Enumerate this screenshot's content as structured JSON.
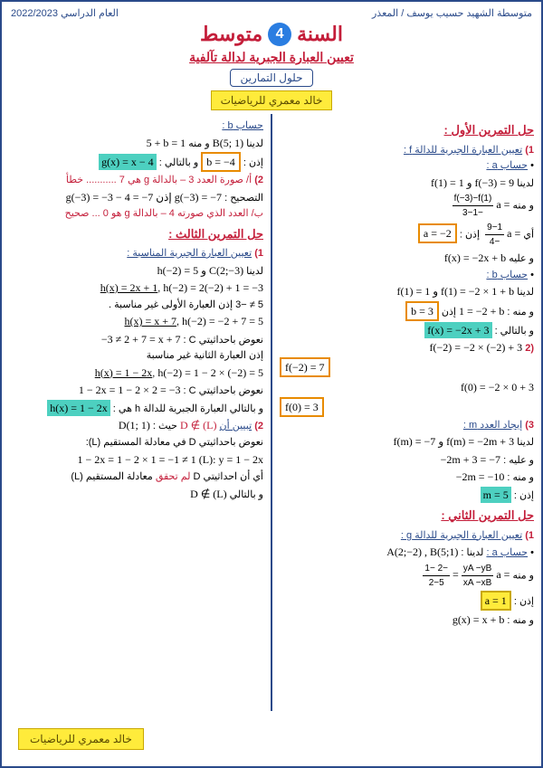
{
  "header": {
    "school": "متوسطة الشهيد حسيب يوسف / المعذر",
    "year": "العام الدراسي 2022/2023"
  },
  "title": {
    "word1": "السنة",
    "grade": "4",
    "word2": "متوسط",
    "subtitle": "تعيين العبارة الجبرية لدالة تآلفية",
    "solutions": "حلول التمارين",
    "author": "خالد معمري للرياضيات"
  },
  "ex1": {
    "title": "حل التمرين الأول :",
    "p1": "تعيين العبارة الجبرية للدالة f :",
    "a": "حساب a :",
    "l1a": "لدينا",
    "l1m": "f(1) = 1 و f(−3) = 9",
    "l2a": "و منه",
    "l2m": "a =",
    "l2fn": "f(−3)−f(1)",
    "l2fd": "−3−1",
    "l3a": "أي",
    "l3m": "a =",
    "l3fn": "9−1",
    "l3fd": "−4",
    "l3b": "إذن :",
    "l3box": "a = −2",
    "l4a": "و عليه",
    "l4m": "f(x) = −2x + b",
    "b": "حساب b :",
    "lb1a": "لدينا",
    "lb1m": "f(1) = 1 و f(1) = −2 × 1 + b",
    "lb2a": "و منه :",
    "lb2m": "1 = −2 + b",
    "lb2b": "إذن",
    "lb2box": "b = 3",
    "lb3a": "و بالتالي :",
    "lb3hl": "f(x) = −2x + 3",
    "p2": "(2",
    "l5m": "f(−2) = −2 × (−2) + 3",
    "l6box": "f(−2) = 7",
    "l7m": "f(0) = −2 × 0 + 3",
    "l8box": "f(0) = 3",
    "p3": "إيجاد العدد m :",
    "lm1a": "لدينا",
    "lm1m": "f(m) = −7 و f(m) = −2m + 3",
    "lm2a": "و عليه :",
    "lm2m": "−2m + 3 = −7",
    "lm3a": "و منه :",
    "lm3m": "−2m = −10",
    "lm4a": "إذن :",
    "lm4hl": "m = 5"
  },
  "ex2": {
    "title": "حل التمرين الثاني :",
    "p1": "تعيين العبارة الجبرية للدالة g :",
    "a": "حساب a :",
    "aa": "لدينا :",
    "am": "A(2;−2) ,  B(5;1)",
    "l1a": "و منه",
    "l1m": "a =",
    "l1fn": "yA −yB",
    "l1fd": "xA −xB",
    "l1e": "=",
    "l1fn2": "−2 −1",
    "l1fd2": "2−5",
    "l2a": "إذن :",
    "l2box": "a = 1",
    "l3a": "و منه :",
    "l3m": "g(x) = x + b"
  },
  "bcalc": {
    "title": "حساب b :",
    "l1a": "لدينا",
    "l1m": "B(5; 1)",
    "l1b": "و منه",
    "l1c": "5 + b = 1",
    "l2a": "إذن :",
    "l2box": "b = −4",
    "l2b": "و بالتالي :",
    "l2hl": "g(x) = x − 4",
    "p2a": "أ/ صورة العدد 3 – بالدالة g هي 7 ........... خطأ",
    "p2b": "التصحيح :",
    "p2m": "g(−3) = −3 − 4 = −7 إذن g(−3) = −7",
    "p2c": "ب/ العدد الذي صورته 4 – بالدالة g هو 0 ... صحيح"
  },
  "ex3": {
    "title": "حل التمرين الثالث :",
    "p1": "تعيين العبارة الجبرية المناسبة :",
    "l1a": "لدينا",
    "l1m": "h(−2) = 5 و C(2;−3)",
    "l2m": "h(−2) = 2(−2) + 1 = −3",
    "l2u": "h(x) = 2x + 1",
    "l2comma": ",",
    "l3": "5 ≠ −3 إذن العبارة الأولى غير مناسبة .",
    "l4m": "h(−2) = −2 + 7 = 5",
    "l4u": "h(x) = x + 7",
    "l4comma": ",",
    "l5a": "نعوض باحداثيتي C :",
    "l5m": "−3 ≠ 2 + 7 = x + 7",
    "l6": "إذن العبارة الثانية غير مناسبة",
    "l7m": "h(−2) = 1 − 2 × (−2) = 5",
    "l7u": "h(x) = 1 − 2x",
    "l7comma": ",",
    "l8a": "نعوض باحداثيتي C :",
    "l8m": "1 − 2x = 1 − 2 × 2 = −3",
    "l9a": "و بالتالي العبارة الجبرية للدالة h هي :",
    "l9hl": "h(x) = 1 − 2x",
    "p2a": "تبيين أن",
    "p2m": "D ∉ (L)",
    "p2b": "حيث :",
    "p2c": "D(1; 1)",
    "p2d": "نعوض باحداثيتي D في معادلة المستقيم (L):",
    "p2e": "(L): y = 1 − 2x",
    "p2f": "1 − 2x = 1 − 2 × 1 = −1 ≠ 1",
    "p2g": "أي أن احداثيتي D لم تحقق معادلة المستقيم (L)",
    "p2h": "و بالتالي",
    "p2i": "D ∉ (L)"
  },
  "footer": {
    "author": "خالد معمري للرياضيات"
  }
}
